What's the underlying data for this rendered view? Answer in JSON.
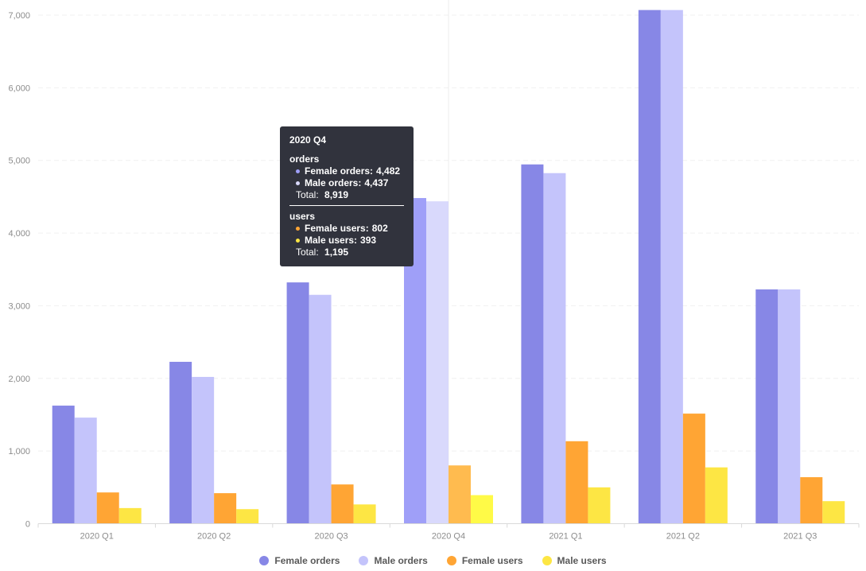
{
  "colors": {
    "female_orders": "#8787e6",
    "male_orders": "#c4c4fb",
    "female_users": "#ffa534",
    "male_users": "#fde644",
    "hover_female_orders": "#9f9ff8",
    "hover_male_orders": "#d9d9fc",
    "hover_female_users": "#ffbb4f",
    "hover_male_users": "#fffa47"
  },
  "chart_data": {
    "type": "bar",
    "categories": [
      "2020 Q1",
      "2020 Q2",
      "2020 Q3",
      "2020 Q4",
      "2021 Q1",
      "2021 Q2",
      "2021 Q3"
    ],
    "series": [
      {
        "name": "Female orders",
        "values": [
          1625,
          2228,
          3321,
          4482,
          4945,
          7070,
          3225
        ]
      },
      {
        "name": "Male orders",
        "values": [
          1460,
          2020,
          3150,
          4437,
          4825,
          7070,
          3225
        ]
      },
      {
        "name": "Female users",
        "values": [
          430,
          420,
          540,
          802,
          1135,
          1515,
          640
        ]
      },
      {
        "name": "Male users",
        "values": [
          215,
          200,
          265,
          393,
          500,
          775,
          310
        ]
      }
    ],
    "ylim": [
      0,
      7000
    ],
    "yticks": [
      "0",
      "1,000",
      "2,000",
      "3,000",
      "4,000",
      "5,000",
      "6,000",
      "7,000"
    ],
    "grid": true,
    "legend_position": "bottom",
    "highlighted_category": "2020 Q4"
  },
  "legend": {
    "female_orders": "Female orders",
    "male_orders": "Male orders",
    "female_users": "Female users",
    "male_users": "Male users"
  },
  "tooltip": {
    "title": "2020 Q4",
    "orders_group": "orders",
    "female_orders_label": "Female orders:",
    "female_orders_value": "4,482",
    "male_orders_label": "Male orders:",
    "male_orders_value": "4,437",
    "orders_total_label": "Total:",
    "orders_total_value": "8,919",
    "users_group": "users",
    "female_users_label": "Female users:",
    "female_users_value": "802",
    "male_users_label": "Male users:",
    "male_users_value": "393",
    "users_total_label": "Total:",
    "users_total_value": "1,195"
  }
}
